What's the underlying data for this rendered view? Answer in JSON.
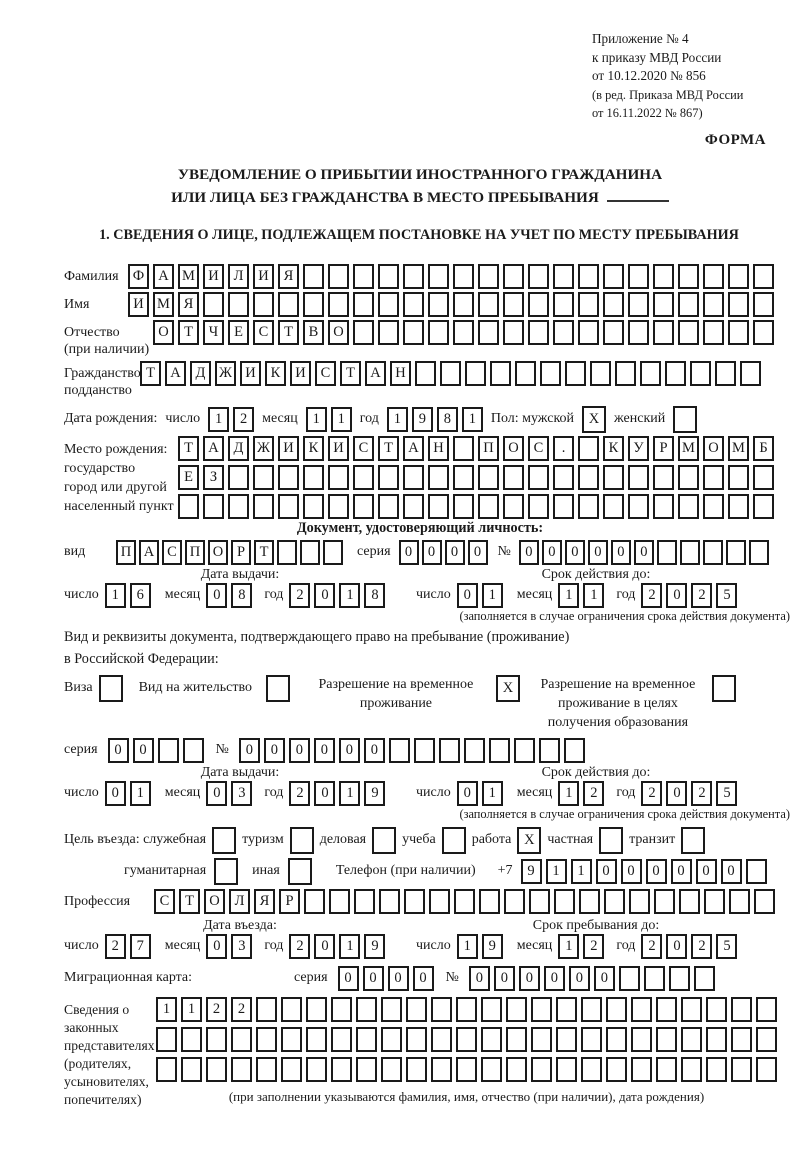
{
  "colors": {
    "ink": "#1a1a1a",
    "paper": "#ffffff"
  },
  "header": {
    "lines": [
      "Приложение № 4",
      "к приказу МВД России",
      "от 10.12.2020 № 856"
    ],
    "amendment": [
      "(в ред. Приказа МВД России",
      "от 16.11.2022 № 867)"
    ],
    "forma": "ФОРМА"
  },
  "title": {
    "line1": "УВЕДОМЛЕНИЕ О ПРИБЫТИИ ИНОСТРАННОГО ГРАЖДАНИНА",
    "line2": "ИЛИ ЛИЦА БЕЗ ГРАЖДАНСТВА В МЕСТО ПРЕБЫВАНИЯ"
  },
  "section1": "1. СВЕДЕНИЯ О ЛИЦЕ, ПОДЛЕЖАЩЕМ ПОСТАНОВКЕ НА УЧЕТ ПО МЕСТУ ПРЕБЫВАНИЯ",
  "labels": {
    "surname": "Фамилия",
    "name": "Имя",
    "patronymic": "Отчество",
    "patronymic_note": "(при наличии)",
    "citizenship1": "Гражданство,",
    "citizenship2": "подданство",
    "birth_date": "Дата рождения:",
    "day": "число",
    "month": "месяц",
    "year": "год",
    "sex_male": "Пол: мужской",
    "sex_female": "женский",
    "birthplace1": "Место рождения:",
    "birthplace2": "государство",
    "birthplace3": "город или другой",
    "birthplace4": "населенный пункт",
    "identity_doc": "Документ, удостоверяющий личность:",
    "doc_kind": "вид",
    "series": "серия",
    "number": "№",
    "issue_date": "Дата выдачи:",
    "valid_until": "Срок действия до:",
    "valid_note": "(заполняется в случае ограничения срока действия документа)",
    "right_doc1": "Вид и реквизиты документа, подтверждающего право на пребывание (проживание)",
    "right_doc2": "в Российской Федерации:",
    "visa": "Виза",
    "residence_permit": "Вид на жительство",
    "temp_residence": "Разрешение на временное проживание",
    "temp_residence_edu": "Разрешение на временное проживание в целях получения образования",
    "purpose": "Цель въезда: служебная",
    "tourism": "туризм",
    "business": "деловая",
    "study": "учеба",
    "work": "работа",
    "private": "частная",
    "transit": "транзит",
    "humanitarian": "гуманитарная",
    "other": "иная",
    "phone": "Телефон (при наличии)",
    "phone_prefix": "+7",
    "profession": "Профессия",
    "entry_date": "Дата въезда:",
    "stay_until": "Срок пребывания до:",
    "migration_card": "Миграционная карта:",
    "reps_lines": [
      "Сведения о",
      "законных",
      "представителях",
      "(родителях,",
      "усыновителях,",
      "попечителях)"
    ],
    "reps_note": "(при заполнении указываются фамилия, имя, отчество (при наличии), дата рождения)"
  },
  "fields": {
    "surname": {
      "value": "ФАМИЛИЯ",
      "total": 26
    },
    "name": {
      "value": "ИМЯ",
      "total": 26
    },
    "patronymic": {
      "value": "ОТЧЕСТВО",
      "total": 25
    },
    "citizenship": {
      "value": "ТАДЖИКИСТАН",
      "total": 25
    },
    "birth": {
      "day": {
        "value": "12",
        "total": 2
      },
      "month": {
        "value": "11",
        "total": 2
      },
      "year": {
        "value": "1981",
        "total": 4
      }
    },
    "sex_male": {
      "value": "X",
      "total": 1
    },
    "sex_female": {
      "value": "",
      "total": 1
    },
    "birthplace_row1": {
      "value": "ТАДЖИКИСТАН ПОС. КУРМОМБ",
      "total": 24
    },
    "birthplace_row2": {
      "value": "ЕЗ",
      "total": 24
    },
    "birthplace_row3": {
      "value": "",
      "total": 24
    },
    "doc_type": {
      "value": "ПАСПОРТ",
      "total": 10
    },
    "doc_series": {
      "value": "0000",
      "total": 4
    },
    "doc_number": {
      "value": "000000",
      "total": 11
    },
    "doc_issue": {
      "day": {
        "value": "16",
        "total": 2
      },
      "month": {
        "value": "08",
        "total": 2
      },
      "year": {
        "value": "2018",
        "total": 4
      }
    },
    "doc_expiry": {
      "day": {
        "value": "01",
        "total": 2
      },
      "month": {
        "value": "11",
        "total": 2
      },
      "year": {
        "value": "2025",
        "total": 4
      }
    },
    "cb_visa": {
      "value": "",
      "total": 1
    },
    "cb_residence": {
      "value": "",
      "total": 1
    },
    "cb_temp_residence": {
      "value": "X",
      "total": 1
    },
    "cb_temp_residence_edu": {
      "value": "",
      "total": 1
    },
    "permit_series": {
      "value": "00",
      "total": 4
    },
    "permit_number": {
      "value": "000000",
      "total": 14
    },
    "permit_issue": {
      "day": {
        "value": "01",
        "total": 2
      },
      "month": {
        "value": "03",
        "total": 2
      },
      "year": {
        "value": "2019",
        "total": 4
      }
    },
    "permit_expiry": {
      "day": {
        "value": "01",
        "total": 2
      },
      "month": {
        "value": "12",
        "total": 2
      },
      "year": {
        "value": "2025",
        "total": 4
      }
    },
    "cb_official": {
      "value": "",
      "total": 1
    },
    "cb_tourism": {
      "value": "",
      "total": 1
    },
    "cb_business": {
      "value": "",
      "total": 1
    },
    "cb_study": {
      "value": "",
      "total": 1
    },
    "cb_work": {
      "value": "X",
      "total": 1
    },
    "cb_private": {
      "value": "",
      "total": 1
    },
    "cb_transit": {
      "value": "",
      "total": 1
    },
    "cb_humanitarian": {
      "value": "",
      "total": 1
    },
    "cb_other": {
      "value": "",
      "total": 1
    },
    "phone": {
      "value": "911000000",
      "total": 10
    },
    "profession": {
      "value": "СТОЛЯР",
      "total": 25
    },
    "entry": {
      "day": {
        "value": "27",
        "total": 2
      },
      "month": {
        "value": "03",
        "total": 2
      },
      "year": {
        "value": "2019",
        "total": 4
      }
    },
    "stay": {
      "day": {
        "value": "19",
        "total": 2
      },
      "month": {
        "value": "12",
        "total": 2
      },
      "year": {
        "value": "2025",
        "total": 4
      }
    },
    "mig_series": {
      "value": "0000",
      "total": 4
    },
    "mig_number": {
      "value": "000000",
      "total": 10
    },
    "reps_row1": {
      "value": "1122",
      "total": 25
    },
    "reps_row2": {
      "value": "",
      "total": 25
    },
    "reps_row3": {
      "value": "",
      "total": 25
    }
  }
}
